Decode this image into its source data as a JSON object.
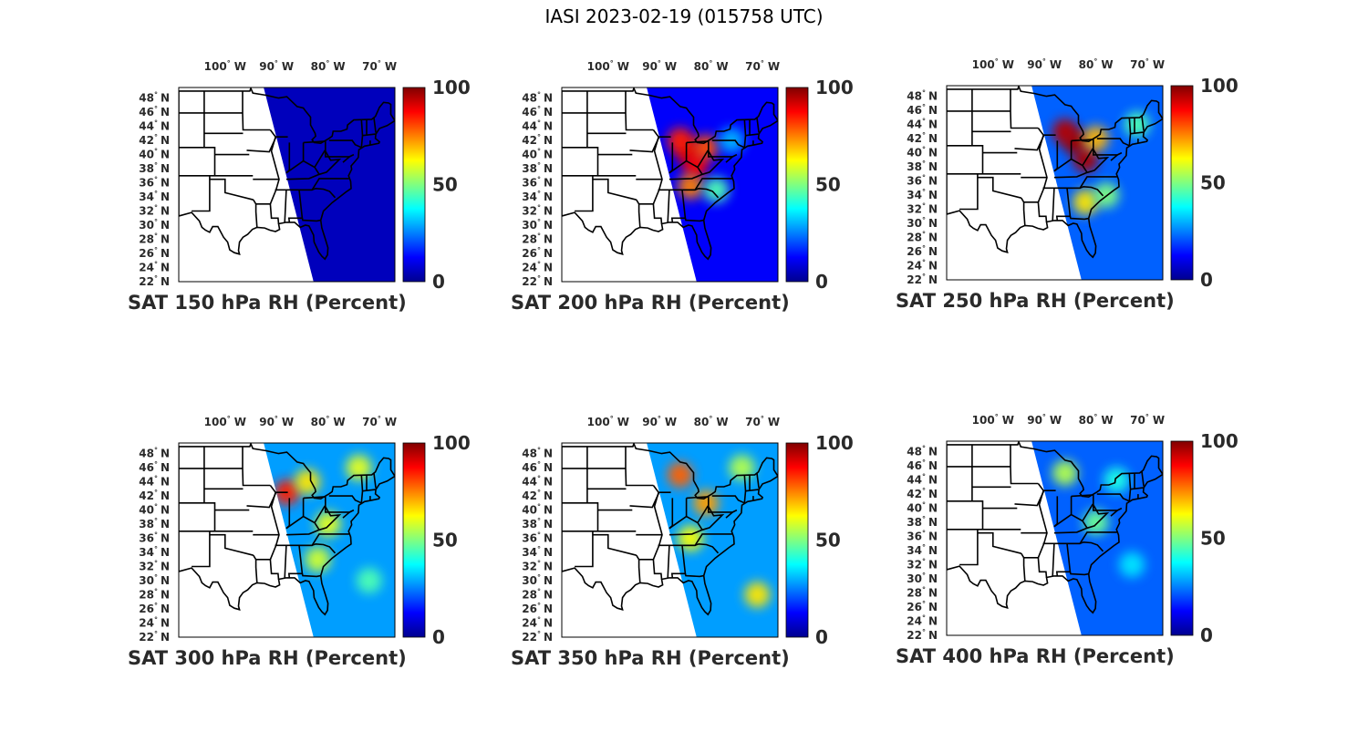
{
  "title": "IASI 2023-02-19 (015758 UTC)",
  "colormap": [
    "#00008f",
    "#0000ff",
    "#0080ff",
    "#00ffff",
    "#80ff80",
    "#ffff00",
    "#ff8000",
    "#ff0000",
    "#800000"
  ],
  "land_color": "#ffffff",
  "chart_data": [
    {
      "type": "heatmap",
      "title": "SAT 150 hPa RH (Percent)",
      "x_ticks": [
        "100° W",
        "90° W",
        "80° W",
        "70° W"
      ],
      "y_ticks": [
        "48° N",
        "46° N",
        "44° N",
        "42° N",
        "40° N",
        "38° N",
        "36° N",
        "34° N",
        "32° N",
        "30° N",
        "28° N",
        "26° N",
        "24° N",
        "22° N"
      ],
      "colorbar_ticks": [
        "100",
        "50",
        "0"
      ],
      "clim": [
        0,
        100
      ],
      "base_value": 5,
      "field": []
    },
    {
      "type": "heatmap",
      "title": "SAT 200 hPa RH (Percent)",
      "x_ticks": [
        "100° W",
        "90° W",
        "80° W",
        "70° W"
      ],
      "y_ticks": [
        "48° N",
        "46° N",
        "44° N",
        "42° N",
        "40° N",
        "38° N",
        "36° N",
        "34° N",
        "32° N",
        "30° N",
        "28° N",
        "26° N",
        "24° N",
        "22° N"
      ],
      "colorbar_ticks": [
        "100",
        "50",
        "0"
      ],
      "clim": [
        0,
        100
      ],
      "base_value": 12,
      "field": [
        {
          "lon": -84.5,
          "lat": 40.5,
          "value": 92
        },
        {
          "lon": -83,
          "lat": 38.5,
          "value": 88
        },
        {
          "lon": -86,
          "lat": 42,
          "value": 85
        },
        {
          "lon": -81,
          "lat": 41,
          "value": 80
        },
        {
          "lon": -84,
          "lat": 35.5,
          "value": 75
        },
        {
          "lon": -79,
          "lat": 35,
          "value": 45
        },
        {
          "lon": -76,
          "lat": 42,
          "value": 30
        }
      ]
    },
    {
      "type": "heatmap",
      "title": "SAT 250 hPa RH (Percent)",
      "x_ticks": [
        "100° W",
        "90° W",
        "80° W",
        "70° W"
      ],
      "y_ticks": [
        "48° N",
        "46° N",
        "44° N",
        "42° N",
        "40° N",
        "38° N",
        "36° N",
        "34° N",
        "32° N",
        "30° N",
        "28° N",
        "26° N",
        "24° N",
        "22° N"
      ],
      "colorbar_ticks": [
        "100",
        "50",
        "0"
      ],
      "clim": [
        0,
        100
      ],
      "base_value": 22,
      "field": [
        {
          "lon": -84,
          "lat": 41.5,
          "value": 98
        },
        {
          "lon": -82,
          "lat": 39,
          "value": 96
        },
        {
          "lon": -86,
          "lat": 43,
          "value": 95
        },
        {
          "lon": -80,
          "lat": 42,
          "value": 70
        },
        {
          "lon": -82,
          "lat": 33,
          "value": 65
        },
        {
          "lon": -78,
          "lat": 34,
          "value": 50
        },
        {
          "lon": -72,
          "lat": 44,
          "value": 45
        }
      ]
    },
    {
      "type": "heatmap",
      "title": "SAT 300 hPa RH (Percent)",
      "x_ticks": [
        "100° W",
        "90° W",
        "80° W",
        "70° W"
      ],
      "y_ticks": [
        "48° N",
        "46° N",
        "44° N",
        "42° N",
        "40° N",
        "38° N",
        "36° N",
        "34° N",
        "32° N",
        "30° N",
        "28° N",
        "26° N",
        "24° N",
        "22° N"
      ],
      "colorbar_ticks": [
        "100",
        "50",
        "0"
      ],
      "clim": [
        0,
        100
      ],
      "base_value": 28,
      "field": [
        {
          "lon": -88,
          "lat": 42.5,
          "value": 85
        },
        {
          "lon": -84,
          "lat": 44,
          "value": 65
        },
        {
          "lon": -80,
          "lat": 38,
          "value": 60
        },
        {
          "lon": -82,
          "lat": 33,
          "value": 58
        },
        {
          "lon": -74,
          "lat": 46,
          "value": 60
        },
        {
          "lon": -72,
          "lat": 30,
          "value": 45
        }
      ]
    },
    {
      "type": "heatmap",
      "title": "SAT 350 hPa RH (Percent)",
      "x_ticks": [
        "100° W",
        "90° W",
        "80° W",
        "70° W"
      ],
      "y_ticks": [
        "48° N",
        "46° N",
        "44° N",
        "42° N",
        "40° N",
        "38° N",
        "36° N",
        "34° N",
        "32° N",
        "30° N",
        "28° N",
        "26° N",
        "24° N",
        "22° N"
      ],
      "colorbar_ticks": [
        "100",
        "50",
        "0"
      ],
      "clim": [
        0,
        100
      ],
      "base_value": 28,
      "field": [
        {
          "lon": -86,
          "lat": 45,
          "value": 78
        },
        {
          "lon": -81,
          "lat": 41,
          "value": 72
        },
        {
          "lon": -84,
          "lat": 36,
          "value": 62
        },
        {
          "lon": -74,
          "lat": 46,
          "value": 55
        },
        {
          "lon": -71,
          "lat": 28,
          "value": 65
        }
      ]
    },
    {
      "type": "heatmap",
      "title": "SAT 400 hPa RH (Percent)",
      "x_ticks": [
        "100° W",
        "90° W",
        "80° W",
        "70° W"
      ],
      "y_ticks": [
        "48° N",
        "46° N",
        "44° N",
        "42° N",
        "40° N",
        "38° N",
        "36° N",
        "34° N",
        "32° N",
        "30° N",
        "28° N",
        "26° N",
        "24° N",
        "22° N"
      ],
      "colorbar_ticks": [
        "100",
        "50",
        "0"
      ],
      "clim": [
        0,
        100
      ],
      "base_value": 22,
      "field": [
        {
          "lon": -86,
          "lat": 45,
          "value": 55
        },
        {
          "lon": -80,
          "lat": 38,
          "value": 48
        },
        {
          "lon": -76,
          "lat": 44,
          "value": 40
        },
        {
          "lon": -73,
          "lat": 32,
          "value": 35
        }
      ]
    }
  ]
}
